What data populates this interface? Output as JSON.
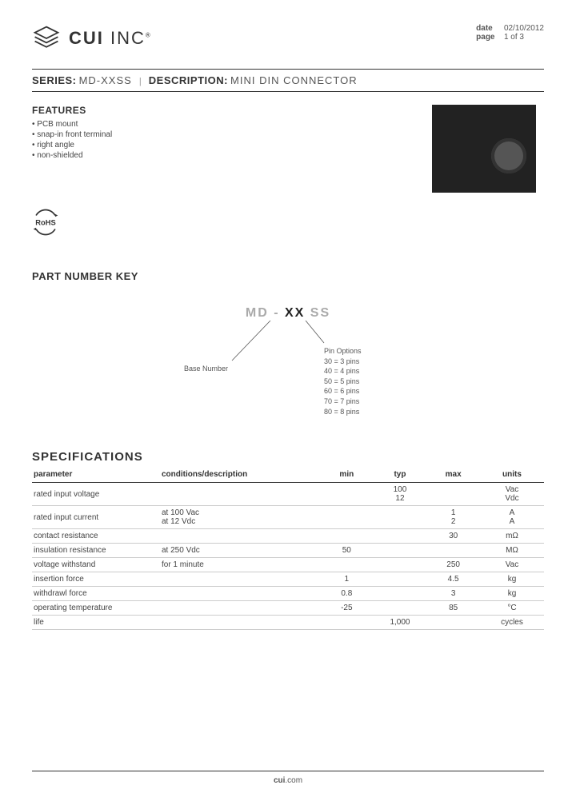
{
  "header": {
    "company_bold": "CUI",
    "company_light": " INC",
    "date_label": "date",
    "date_value": "02/10/2012",
    "page_label": "page",
    "page_value": "1 of 3"
  },
  "series_row": {
    "series_label": "SERIES:",
    "series_value": "MD-XXSS",
    "desc_label": "DESCRIPTION:",
    "desc_value": "MINI DIN CONNECTOR"
  },
  "features": {
    "title": "FEATURES",
    "items": [
      "PCB mount",
      "snap-in front terminal",
      "right angle",
      "non-shielded"
    ]
  },
  "rohs": "RoHS",
  "part_key": {
    "title": "PART NUMBER KEY",
    "p1": "MD",
    "dash": " - ",
    "p2": "XX",
    "p3": " SS",
    "left_label": "Base Number",
    "right_title": "Pin Options",
    "right_lines": [
      "30 = 3 pins",
      "40 = 4 pins",
      "50 = 5 pins",
      "60 = 6 pins",
      "70 = 7 pins",
      "80 = 8 pins"
    ]
  },
  "specs": {
    "title": "SPECIFICATIONS",
    "headers": {
      "parameter": "parameter",
      "conditions": "conditions/description",
      "min": "min",
      "typ": "typ",
      "max": "max",
      "units": "units"
    },
    "rows": [
      {
        "param": "rated input voltage",
        "cond": "",
        "min": "",
        "typ": "100\n12",
        "max": "",
        "units": "Vac\nVdc"
      },
      {
        "param": "rated input current",
        "cond": "at 100 Vac\nat 12 Vdc",
        "min": "",
        "typ": "",
        "max": "1\n2",
        "units": "A\nA"
      },
      {
        "param": "contact resistance",
        "cond": "",
        "min": "",
        "typ": "",
        "max": "30",
        "units": "mΩ"
      },
      {
        "param": "insulation resistance",
        "cond": "at 250 Vdc",
        "min": "50",
        "typ": "",
        "max": "",
        "units": "MΩ"
      },
      {
        "param": "voltage withstand",
        "cond": "for 1 minute",
        "min": "",
        "typ": "",
        "max": "250",
        "units": "Vac"
      },
      {
        "param": "insertion force",
        "cond": "",
        "min": "1",
        "typ": "",
        "max": "4.5",
        "units": "kg"
      },
      {
        "param": "withdrawl force",
        "cond": "",
        "min": "0.8",
        "typ": "",
        "max": "3",
        "units": "kg"
      },
      {
        "param": "operating temperature",
        "cond": "",
        "min": "-25",
        "typ": "",
        "max": "85",
        "units": "°C"
      },
      {
        "param": "life",
        "cond": "",
        "min": "",
        "typ": "1,000",
        "max": "",
        "units": "cycles"
      }
    ]
  },
  "footer": {
    "bold": "cui",
    "rest": ".com"
  }
}
